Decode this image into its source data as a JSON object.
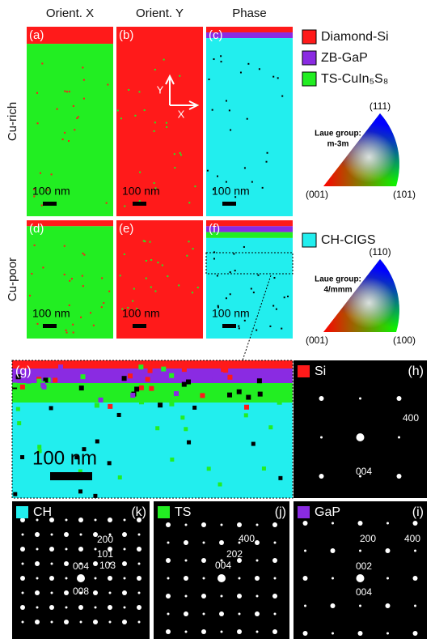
{
  "columns": [
    "Orient. X",
    "Orient. Y",
    "Phase"
  ],
  "rows": [
    "Cu-rich",
    "Cu-poor"
  ],
  "map_panels": [
    {
      "label": "(a)",
      "scale": "100 nm"
    },
    {
      "label": "(b)",
      "scale": "100 nm"
    },
    {
      "label": "(c)",
      "scale": "100 nm"
    },
    {
      "label": "(d)",
      "scale": "100 nm"
    },
    {
      "label": "(e)",
      "scale": "100 nm"
    },
    {
      "label": "(f)",
      "scale": "100 nm"
    }
  ],
  "axes": {
    "y": "Y",
    "x": "X"
  },
  "legend": [
    "Diamond-Si",
    "ZB-GaP",
    "TS-CuIn₅S₈",
    "CH-CIGS"
  ],
  "laue": [
    {
      "title": "Laue group:",
      "group": "m-3m",
      "top": "(111)",
      "left": "(001)",
      "right": "(101)"
    },
    {
      "title": "Laue group:",
      "group": "4/mmm",
      "top": "(110)",
      "left": "(001)",
      "right": "(100)"
    }
  ],
  "zoom": {
    "label": "(g)",
    "scale": "100 nm"
  },
  "patterns": [
    {
      "label": "(h)",
      "phase": "Si",
      "indices": [
        "400",
        "004"
      ]
    },
    {
      "label": "(k)",
      "phase": "CH",
      "indices": [
        "200",
        "101",
        "103",
        "004",
        "008"
      ]
    },
    {
      "label": "(j)",
      "phase": "TS",
      "indices": [
        "400",
        "202",
        "004"
      ]
    },
    {
      "label": "(i)",
      "phase": "GaP",
      "indices": [
        "200",
        "400",
        "002",
        "004"
      ]
    }
  ]
}
